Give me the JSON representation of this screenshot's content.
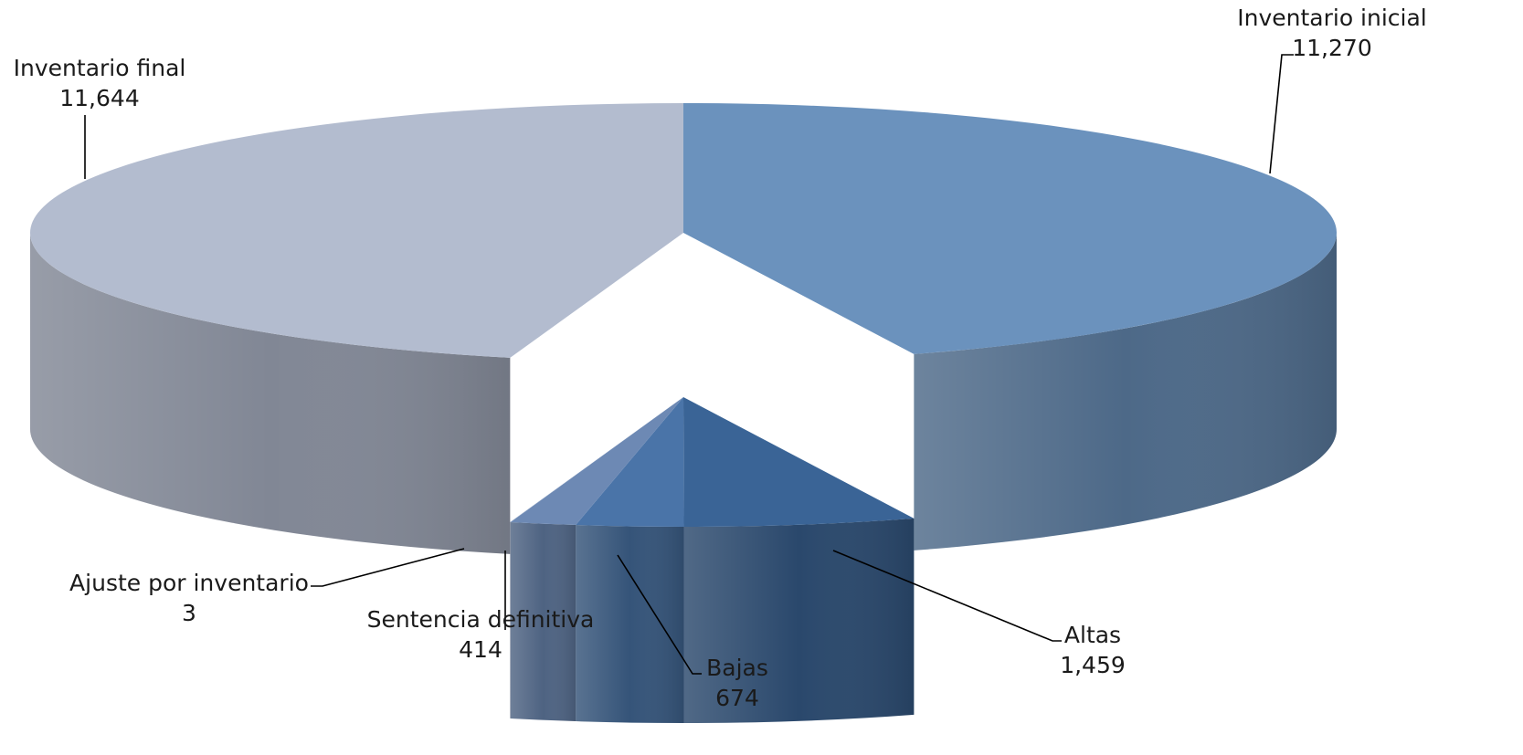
{
  "chart_data": {
    "type": "pie",
    "style": "3d-exploded-pie",
    "title": "",
    "legend": "none",
    "slices": [
      {
        "label": "Inventario inicial",
        "value": 11270,
        "value_text": "11,270",
        "color": "#6b92bd"
      },
      {
        "label": "Altas",
        "value": 1459,
        "value_text": "1,459",
        "color": "#3a6496"
      },
      {
        "label": "Bajas",
        "value": 674,
        "value_text": "674",
        "color": "#4a74a8"
      },
      {
        "label": "Sentencia definitiva",
        "value": 414,
        "value_text": "414",
        "color": "#6d89b4"
      },
      {
        "label": "Ajuste por inventario",
        "value": 3,
        "value_text": "3",
        "color": "#8aa0c2"
      },
      {
        "label": "Inventario final",
        "value": 11644,
        "value_text": "11,644",
        "color": "#b3bccf"
      }
    ]
  }
}
